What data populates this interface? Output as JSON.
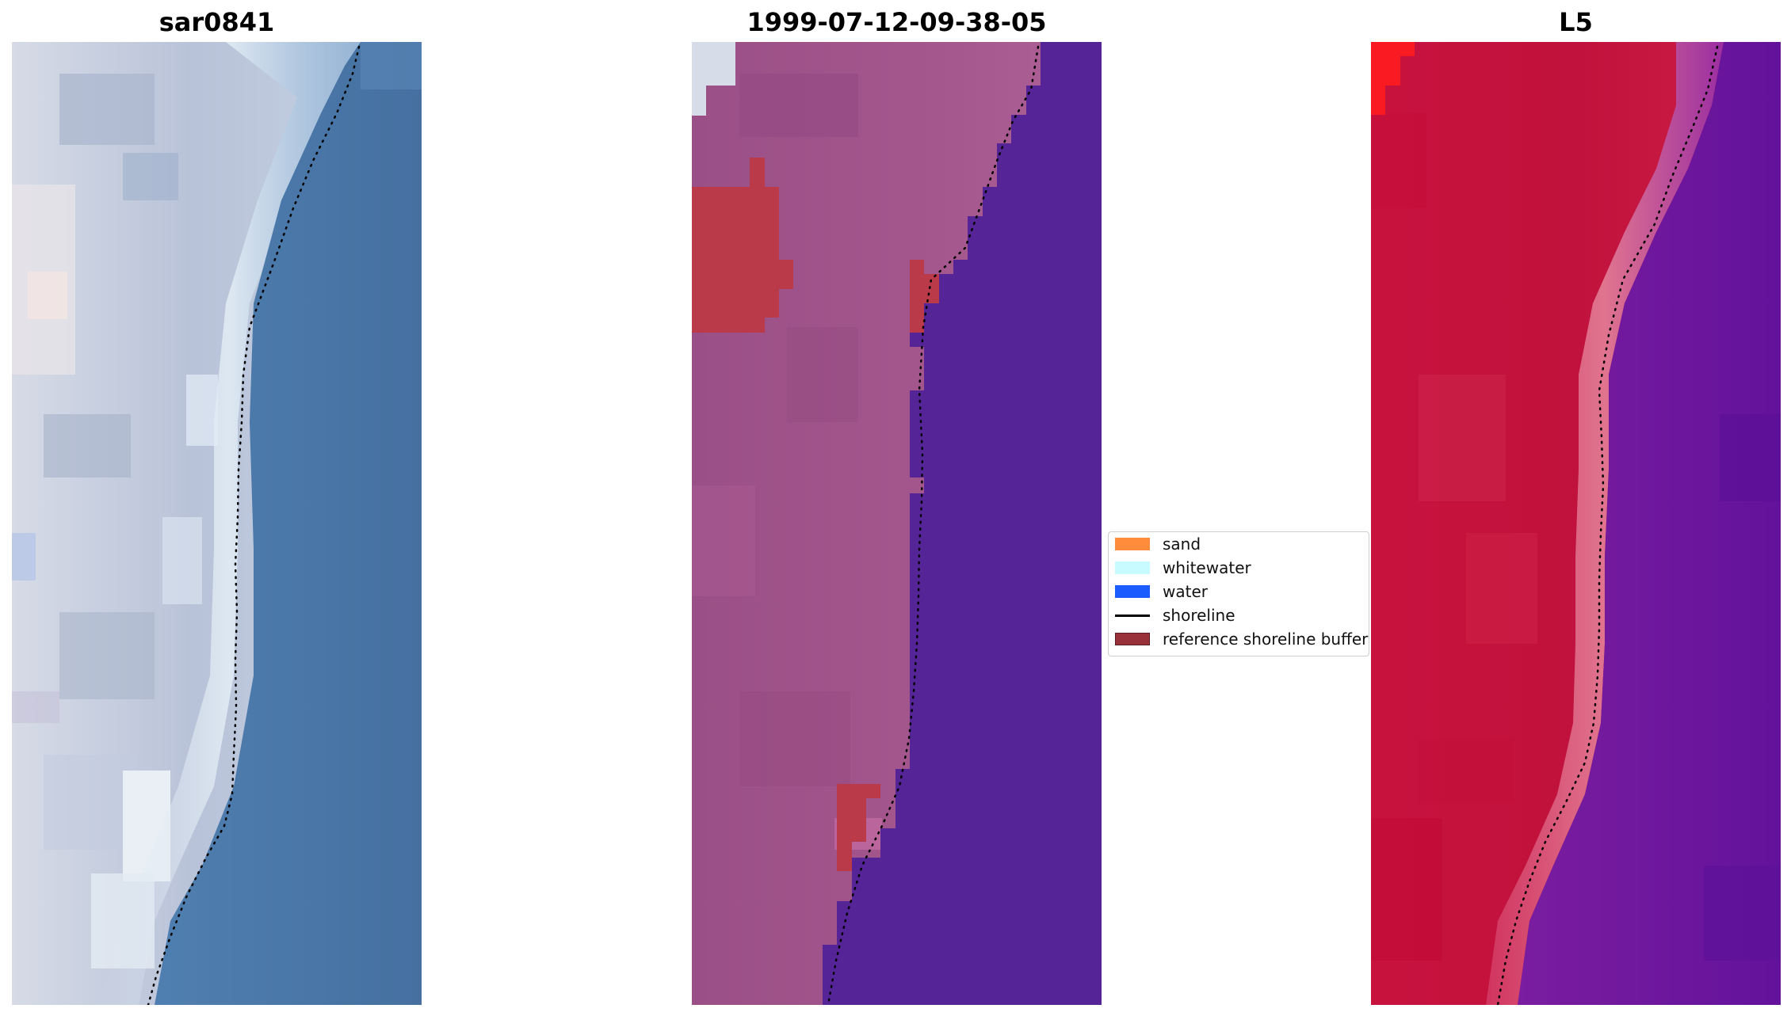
{
  "panels": [
    {
      "title": "sar0841",
      "kind": "rgb"
    },
    {
      "title": "1999-07-12-09-38-05",
      "kind": "classified"
    },
    {
      "title": "L5",
      "kind": "index"
    }
  ],
  "legend": {
    "items": [
      {
        "label": "sand",
        "type": "patch",
        "color": "#ff8c3a"
      },
      {
        "label": "whitewater",
        "type": "patch",
        "color": "#c8fbff"
      },
      {
        "label": "water",
        "type": "patch",
        "color": "#1a5cff"
      },
      {
        "label": "shoreline",
        "type": "line",
        "color": "#000000"
      },
      {
        "label": "reference shoreline buffer",
        "type": "patch",
        "color": "#99313a"
      }
    ]
  },
  "colors": {
    "land_rgb": "#c3cbdd",
    "water_rgb": "#4675a6",
    "land_classified": "#a0558a",
    "water_classified": "#552497",
    "buffer_classified": "#bb3a4a",
    "land_index": "#c8133e",
    "water_index": "#69169d",
    "shoreline_dots": "#000000"
  }
}
